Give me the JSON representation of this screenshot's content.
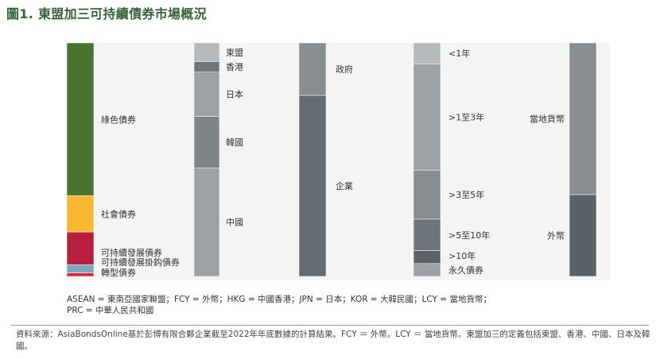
{
  "title": "圖1. 東盟加三可持續債券市場概況",
  "notes": {
    "line1": "ASEAN = 東南亞國家聯盟；FCY = 外幣；HKG = 中國香港；JPN = 日本；KOR = 大韓民國；LCY = 當地貨幣；",
    "line2": "PRC = 中華人民共和國"
  },
  "source": "資料來源：AsiaBondsOnline基於彭博有限合夥企業截至2022年年底數據的計算結果。FCY ＝ 外幣。LCY ＝ 當地貨幣。東盟加三的定義包括東盟、香港、中國、日本及韓國。",
  "chart_data": {
    "type": "stacked-bar-100",
    "unit": "share of total (%)",
    "bars": [
      {
        "segments": [
          {
            "label": "綠色債券",
            "value": 65.5,
            "color": "#4b7431"
          },
          {
            "label": "社會債券",
            "value": 15.5,
            "color": "#f7b731"
          },
          {
            "label": "可持續發展債券",
            "value": 14.0,
            "color": "#b81f3f"
          },
          {
            "label": "可持續發展掛鈎債券",
            "value": 3.5,
            "color": "#7fa6bf"
          },
          {
            "label": "轉型債券",
            "value": 1.5,
            "color": "#d6283d"
          }
        ]
      },
      {
        "segments": [
          {
            "label": "東盟",
            "value": 8.0,
            "color": "#b5b9bb"
          },
          {
            "label": "香港",
            "value": 4.5,
            "color": "#6f767b"
          },
          {
            "label": "日本",
            "value": 19.0,
            "color": "#9ca1a5"
          },
          {
            "label": "韓國",
            "value": 22.0,
            "color": "#7d8488"
          },
          {
            "label": "中國",
            "value": 46.5,
            "color": "#9ca1a5"
          }
        ]
      },
      {
        "segments": [
          {
            "label": "政府",
            "value": 22.5,
            "color": "#878d91"
          },
          {
            "label": "企業",
            "value": 77.5,
            "color": "#646c72"
          }
        ]
      },
      {
        "segments": [
          {
            "label": "<1年",
            "value": 9.0,
            "color": "#b5b9bb"
          },
          {
            "label": ">1至3年",
            "value": 45.5,
            "color": "#9ca1a5"
          },
          {
            "label": ">3至5年",
            "value": 21.0,
            "color": "#868c90"
          },
          {
            "label": ">5至10年",
            "value": 13.5,
            "color": "#6f767b"
          },
          {
            "label": ">10年",
            "value": 5.5,
            "color": "#5a6268"
          },
          {
            "label": "永久債券",
            "value": 5.5,
            "color": "#9ca1a5"
          }
        ]
      },
      {
        "segments": [
          {
            "label": "當地貨幣",
            "value": 65.0,
            "color": "#878d91"
          },
          {
            "label": "外幣",
            "value": 35.0,
            "color": "#5a6268"
          }
        ]
      }
    ]
  }
}
